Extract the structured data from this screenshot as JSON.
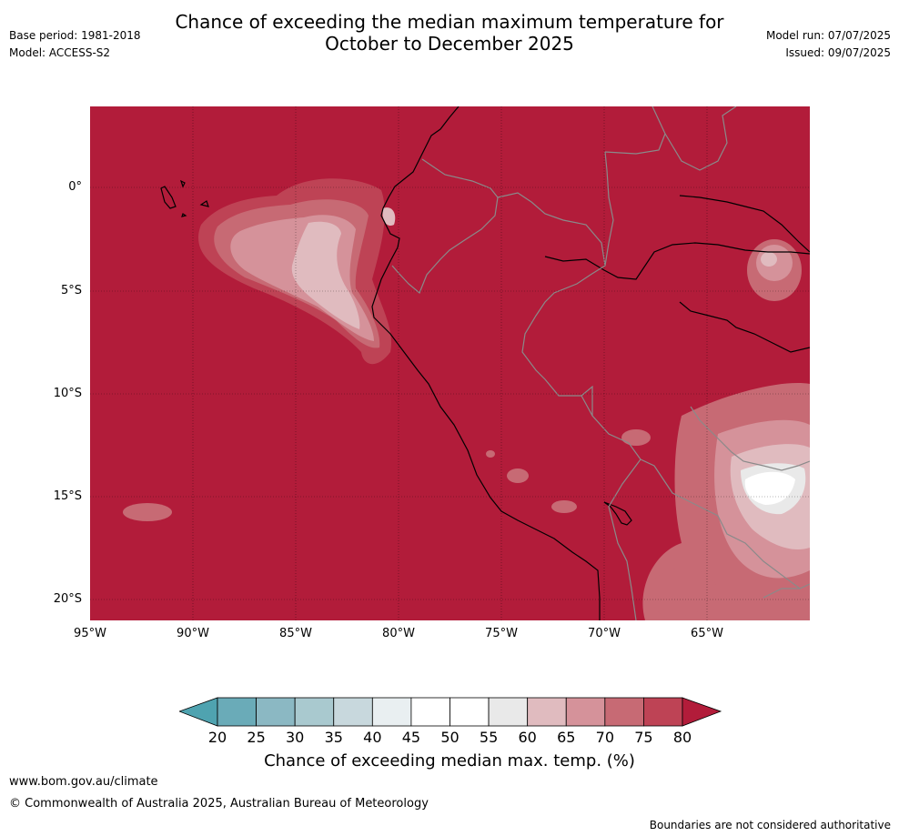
{
  "header": {
    "title_line1": "Chance of exceeding the median maximum temperature for",
    "title_line2": "October to December 2025",
    "base_period": "Base period: 1981-2018",
    "model": "Model: ACCESS-S2",
    "model_run": "Model run: 07/07/2025",
    "issued": "Issued: 09/07/2025"
  },
  "map": {
    "lat_labels": [
      "0°",
      "5°S",
      "10°S",
      "15°S",
      "20°S"
    ],
    "lon_labels": [
      "95°W",
      "90°W",
      "85°W",
      "80°W",
      "75°W",
      "70°W",
      "65°W"
    ],
    "colors": {
      "background": "#b21c3a",
      "c75": "#be4355",
      "c70": "#c76a74",
      "c65": "#d5929a",
      "c60": "#e0bbbf",
      "c55": "#e9e9e9",
      "c50": "#ffffff",
      "coast": "#000000",
      "border": "#8a8a8a"
    }
  },
  "colorbar": {
    "ticks": [
      "20",
      "25",
      "30",
      "35",
      "40",
      "45",
      "50",
      "55",
      "60",
      "65",
      "70",
      "75",
      "80"
    ],
    "colors": [
      "#4fa3b0",
      "#6aabb8",
      "#8bb8c3",
      "#a9c9cf",
      "#c8d8dd",
      "#e9eff1",
      "#ffffff",
      "#ffffff",
      "#e9e9e9",
      "#e0bbbf",
      "#d5929a",
      "#c76a74",
      "#be4355",
      "#b21c3a"
    ],
    "label": "Chance of exceeding median max. temp. (%)"
  },
  "footer": {
    "website": "www.bom.gov.au/climate",
    "copyright": "© Commonwealth of Australia 2025, Australian Bureau of Meteorology",
    "disclaimer": "Boundaries are not considered authoritative"
  }
}
